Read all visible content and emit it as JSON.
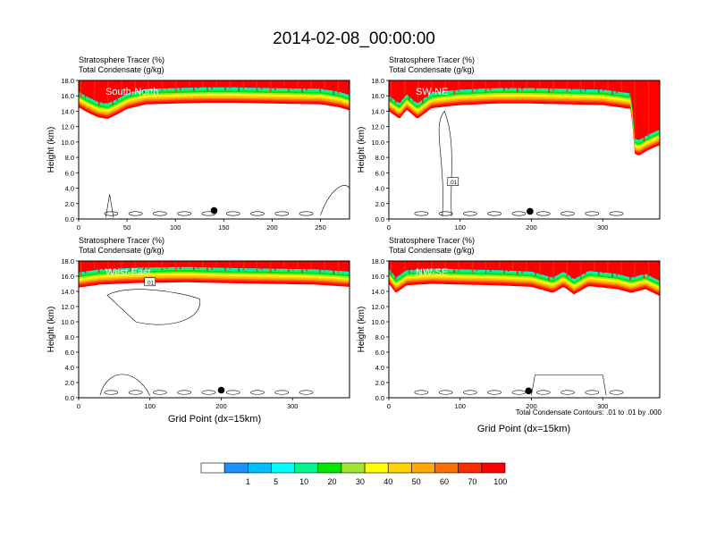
{
  "title": "2014-02-08_00:00:00",
  "shared_labels": {
    "line1": "Stratosphere Tracer   (%)",
    "line2": "Total Condensate   (g/kg)",
    "ylabel": "Height (km)",
    "xlabel": "Grid Point (dx=15km)",
    "contour_note": "Total Condensate Contours: .01 to .01 by .000"
  },
  "colorbar": {
    "labels": [
      "1",
      "5",
      "10",
      "20",
      "30",
      "40",
      "50",
      "60",
      "70",
      "100"
    ],
    "colors": [
      "#ffffff",
      "#1e8fff",
      "#00bfff",
      "#00ffff",
      "#00f58c",
      "#00e600",
      "#a0e632",
      "#ffff00",
      "#ffd200",
      "#ffaa00",
      "#ff6e00",
      "#ff2800",
      "#ff0000"
    ]
  },
  "chart_data": [
    {
      "type": "heatmap",
      "panel": "South-North",
      "x_ticks": [
        "0",
        "50",
        "100",
        "150",
        "200",
        "250"
      ],
      "y_ticks": [
        "0.0",
        "2.0",
        "4.0",
        "6.0",
        "8.0",
        "10.0",
        "12.0",
        "14.0",
        "16.0",
        "18.0"
      ],
      "xlim": [
        0,
        280
      ],
      "ylim": [
        0,
        18
      ],
      "contour_label": "",
      "marker": {
        "x": 140,
        "y": 1.1
      },
      "tropopause": [
        [
          0,
          14.5
        ],
        [
          10,
          13.8
        ],
        [
          20,
          13.2
        ],
        [
          30,
          13.0
        ],
        [
          40,
          13.6
        ],
        [
          50,
          14.3
        ],
        [
          70,
          14.9
        ],
        [
          100,
          15.0
        ],
        [
          130,
          15.1
        ],
        [
          160,
          15.1
        ],
        [
          200,
          15.0
        ],
        [
          250,
          14.9
        ],
        [
          270,
          14.5
        ],
        [
          280,
          14.1
        ]
      ]
    },
    {
      "type": "heatmap",
      "panel": "SW-NE",
      "x_ticks": [
        "0",
        "100",
        "200",
        "300"
      ],
      "y_ticks": [
        "0.0",
        "2.0",
        "4.0",
        "6.0",
        "8.0",
        "10.0",
        "12.0",
        "14.0",
        "16.0",
        "18.0"
      ],
      "xlim": [
        0,
        380
      ],
      "ylim": [
        0,
        18
      ],
      "contour_label": ".01",
      "marker": {
        "x": 198,
        "y": 1.0
      },
      "tropopause": [
        [
          0,
          14.0
        ],
        [
          15,
          13.0
        ],
        [
          25,
          14.2
        ],
        [
          40,
          13.0
        ],
        [
          60,
          14.4
        ],
        [
          100,
          14.8
        ],
        [
          150,
          15.0
        ],
        [
          200,
          15.0
        ],
        [
          250,
          14.9
        ],
        [
          300,
          14.8
        ],
        [
          340,
          14.3
        ],
        [
          345,
          8.5
        ],
        [
          350,
          8.2
        ],
        [
          365,
          9.0
        ],
        [
          380,
          9.6
        ]
      ]
    },
    {
      "type": "heatmap",
      "panel": "West-East",
      "x_ticks": [
        "0",
        "100",
        "200",
        "300"
      ],
      "y_ticks": [
        "0.0",
        "2.0",
        "4.0",
        "6.0",
        "8.0",
        "10.0",
        "12.0",
        "14.0",
        "16.0",
        "18.0"
      ],
      "xlim": [
        0,
        380
      ],
      "ylim": [
        0,
        18
      ],
      "contour_label": ".01",
      "marker": {
        "x": 200,
        "y": 1.0
      },
      "tropopause": [
        [
          0,
          14.5
        ],
        [
          30,
          14.9
        ],
        [
          80,
          15.1
        ],
        [
          150,
          15.2
        ],
        [
          200,
          15.1
        ],
        [
          260,
          15.0
        ],
        [
          330,
          14.9
        ],
        [
          380,
          14.6
        ]
      ]
    },
    {
      "type": "heatmap",
      "panel": "NW-SE",
      "x_ticks": [
        "0",
        "100",
        "200",
        "300"
      ],
      "y_ticks": [
        "0.0",
        "2.0",
        "4.0",
        "6.0",
        "8.0",
        "10.0",
        "12.0",
        "14.0",
        "16.0",
        "18.0"
      ],
      "xlim": [
        0,
        380
      ],
      "ylim": [
        0,
        18
      ],
      "contour_label": "",
      "marker": {
        "x": 196,
        "y": 0.9
      },
      "tropopause": [
        [
          0,
          15.0
        ],
        [
          10,
          13.8
        ],
        [
          25,
          14.8
        ],
        [
          60,
          15.0
        ],
        [
          100,
          14.9
        ],
        [
          150,
          14.8
        ],
        [
          200,
          14.6
        ],
        [
          230,
          13.8
        ],
        [
          245,
          14.6
        ],
        [
          260,
          13.6
        ],
        [
          280,
          14.7
        ],
        [
          320,
          14.3
        ],
        [
          340,
          13.8
        ],
        [
          360,
          14.3
        ],
        [
          380,
          13.4
        ]
      ]
    }
  ]
}
